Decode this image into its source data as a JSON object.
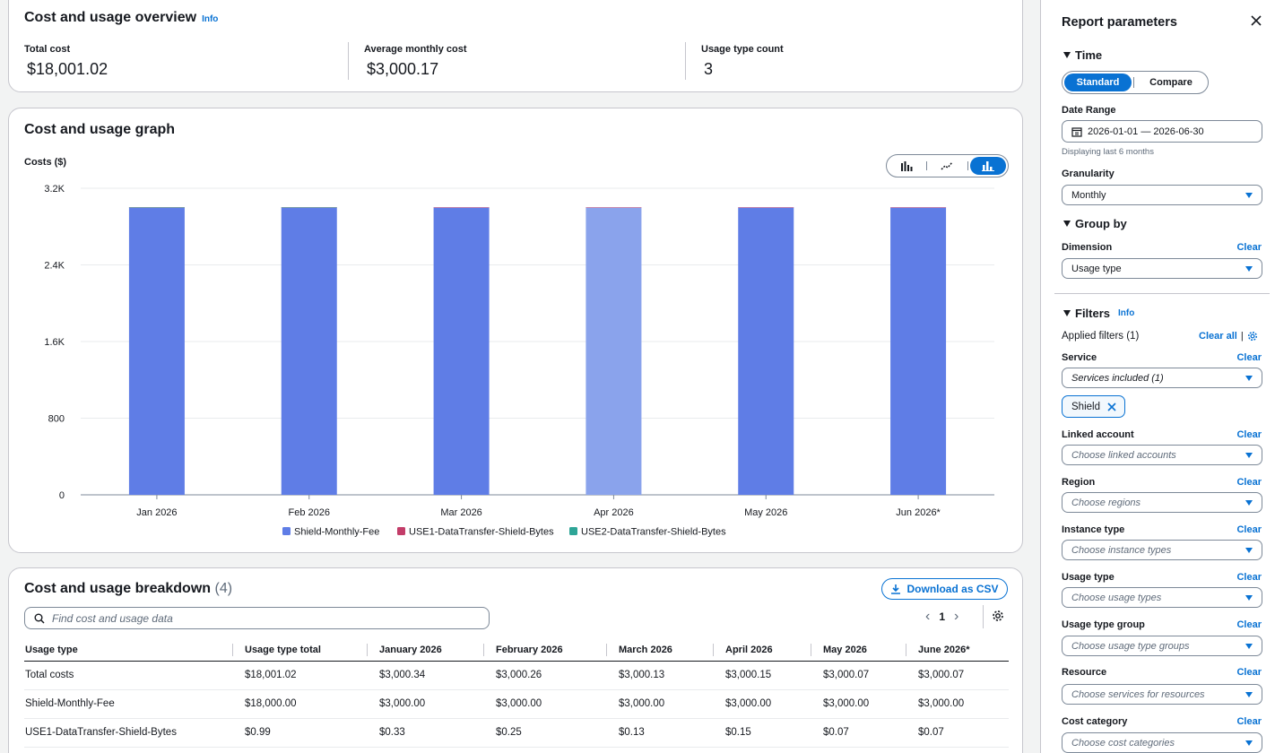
{
  "overview": {
    "title": "Cost and usage overview",
    "info": "Info",
    "metrics": [
      {
        "label": "Total cost",
        "value": "$18,001.02"
      },
      {
        "label": "Average monthly cost",
        "value": "$3,000.17"
      },
      {
        "label": "Usage type count",
        "value": "3"
      }
    ]
  },
  "graph": {
    "title": "Cost and usage graph",
    "toggle": [
      "bar-chart-icon",
      "line-chart-icon",
      "stacked-bar-chart-icon"
    ],
    "active_toggle": "stacked-bar-chart-icon"
  },
  "chart_data": {
    "type": "bar",
    "ylabel": "Costs ($)",
    "ylim": [
      0,
      3200
    ],
    "yticks": [
      0,
      800,
      1600,
      2400,
      3200
    ],
    "ytick_labels": [
      "0",
      "800",
      "1.6K",
      "2.4K",
      "3.2K"
    ],
    "categories": [
      "Jan 2026",
      "Feb 2026",
      "Mar 2026",
      "Apr 2026",
      "May 2026",
      "Jun 2026*"
    ],
    "series": [
      {
        "name": "Shield-Monthly-Fee",
        "color": "#5f7de6",
        "values": [
          3000,
          3000,
          3000,
          3000,
          3000,
          3000
        ]
      },
      {
        "name": "USE1-DataTransfer-Shield-Bytes",
        "color": "#c33d69",
        "values": [
          0.33,
          0.25,
          0.13,
          0.15,
          0.07,
          0.07
        ]
      },
      {
        "name": "USE2-DataTransfer-Shield-Bytes",
        "color": "#2ea597",
        "values": [
          0.01,
          0.01,
          0,
          0,
          0,
          0
        ]
      }
    ],
    "highlighted_category": "Apr 2026",
    "highlight_color": "#8aa3ec",
    "grid": true,
    "legend": "bottom"
  },
  "breakdown": {
    "title": "Cost and usage breakdown",
    "count": "(4)",
    "csv_label": "Download as CSV",
    "search_placeholder": "Find cost and usage data",
    "page": "1",
    "columns": [
      "Usage type",
      "Usage type total",
      "January 2026",
      "February 2026",
      "March 2026",
      "April 2026",
      "May 2026",
      "June 2026*"
    ],
    "rows": [
      [
        "Total costs",
        "$18,001.02",
        "$3,000.34",
        "$3,000.26",
        "$3,000.13",
        "$3,000.15",
        "$3,000.07",
        "$3,000.07"
      ],
      [
        "Shield-Monthly-Fee",
        "$18,000.00",
        "$3,000.00",
        "$3,000.00",
        "$3,000.00",
        "$3,000.00",
        "$3,000.00",
        "$3,000.00"
      ],
      [
        "USE1-DataTransfer-Shield-Bytes",
        "$0.99",
        "$0.33",
        "$0.25",
        "$0.13",
        "$0.15",
        "$0.07",
        "$0.07"
      ]
    ]
  },
  "panel": {
    "title": "Report parameters",
    "time": {
      "heading": "Time",
      "standard": "Standard",
      "compare": "Compare",
      "date_range_label": "Date Range",
      "date_range_value": "2026-01-01 — 2026-06-30",
      "date_range_help": "Displaying last 6 months",
      "granularity_label": "Granularity",
      "granularity_value": "Monthly"
    },
    "group_by": {
      "heading": "Group by",
      "dimension_label": "Dimension",
      "dimension_value": "Usage type",
      "clear": "Clear"
    },
    "filters": {
      "heading": "Filters",
      "info": "Info",
      "applied": "Applied filters (1)",
      "clear_all": "Clear all",
      "clear": "Clear",
      "service_label": "Service",
      "service_value": "Services included (1)",
      "service_token": "Shield",
      "linked_account_label": "Linked account",
      "linked_account_placeholder": "Choose linked accounts",
      "region_label": "Region",
      "region_placeholder": "Choose regions",
      "instance_type_label": "Instance type",
      "instance_type_placeholder": "Choose instance types",
      "usage_type_label": "Usage type",
      "usage_type_placeholder": "Choose usage types",
      "usage_type_group_label": "Usage type group",
      "usage_type_group_placeholder": "Choose usage type groups",
      "resource_label": "Resource",
      "resource_placeholder": "Choose services for resources",
      "cost_category_label": "Cost category",
      "cost_category_placeholder": "Choose cost categories"
    }
  }
}
